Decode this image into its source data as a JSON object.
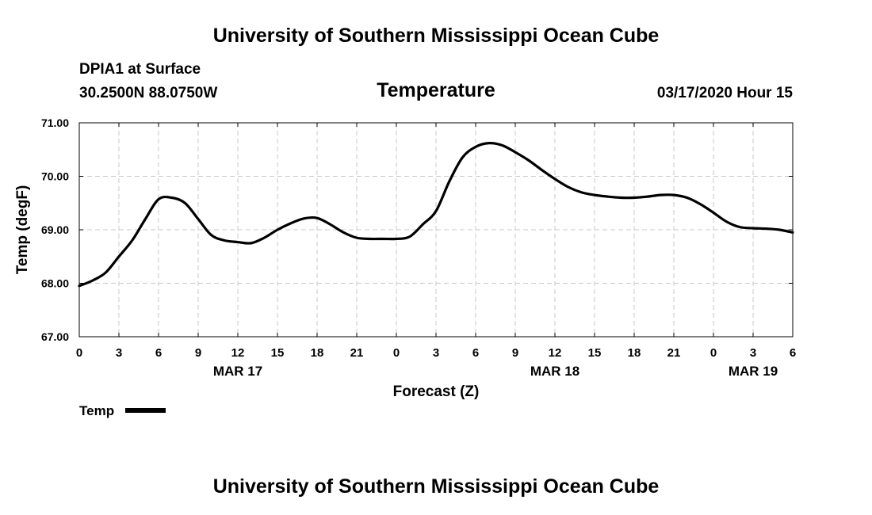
{
  "header": {
    "top_title": "University of Southern Mississippi Ocean Cube",
    "station": "DPIA1 at Surface",
    "coords": "30.2500N 88.0750W",
    "chart_title": "Temperature",
    "datetime": "03/17/2020 Hour 15"
  },
  "footer": {
    "bottom_title": "University of Southern Mississippi Ocean Cube"
  },
  "legend": {
    "label": "Temp",
    "color": "#000000"
  },
  "chart_data": {
    "type": "line",
    "title": "Temperature",
    "xlabel": "Forecast (Z)",
    "ylabel": "Temp (degF)",
    "xlim": [
      0,
      54
    ],
    "ylim": [
      67.0,
      71.0
    ],
    "grid": true,
    "x_tick_values": [
      0,
      3,
      6,
      9,
      12,
      15,
      18,
      21,
      24,
      27,
      30,
      33,
      36,
      39,
      42,
      45,
      48,
      51,
      54
    ],
    "x_tick_labels": [
      "0",
      "3",
      "6",
      "9",
      "12",
      "15",
      "18",
      "21",
      "0",
      "3",
      "6",
      "9",
      "12",
      "15",
      "18",
      "21",
      "0",
      "3",
      "6"
    ],
    "date_labels": [
      {
        "x": 12,
        "label": "MAR 17"
      },
      {
        "x": 36,
        "label": "MAR 18"
      },
      {
        "x": 51,
        "label": "MAR 19"
      }
    ],
    "y_ticks": [
      "67.00",
      "68.00",
      "69.00",
      "70.00",
      "71.00"
    ],
    "series": [
      {
        "name": "Temp",
        "color": "#000000",
        "x": [
          0,
          1,
          2,
          3,
          4,
          5,
          6,
          7,
          8,
          9,
          10,
          11,
          12,
          13,
          14,
          15,
          16,
          17,
          18,
          19,
          20,
          21,
          22,
          23,
          24,
          25,
          26,
          27,
          28,
          29,
          30,
          31,
          32,
          33,
          34,
          35,
          36,
          37,
          38,
          39,
          40,
          41,
          42,
          43,
          44,
          45,
          46,
          47,
          48,
          49,
          50,
          51,
          52,
          53,
          54
        ],
        "values": [
          67.95,
          68.05,
          68.2,
          68.5,
          68.8,
          69.2,
          69.57,
          69.6,
          69.5,
          69.2,
          68.9,
          68.8,
          68.77,
          68.75,
          68.85,
          69.0,
          69.12,
          69.21,
          69.22,
          69.1,
          68.95,
          68.85,
          68.83,
          68.83,
          68.83,
          68.87,
          69.1,
          69.35,
          69.9,
          70.35,
          70.55,
          70.62,
          70.58,
          70.45,
          70.3,
          70.12,
          69.95,
          69.8,
          69.7,
          69.65,
          69.62,
          69.6,
          69.6,
          69.62,
          69.65,
          69.65,
          69.6,
          69.48,
          69.32,
          69.15,
          69.05,
          69.03,
          69.02,
          69.0,
          68.95
        ]
      }
    ]
  }
}
